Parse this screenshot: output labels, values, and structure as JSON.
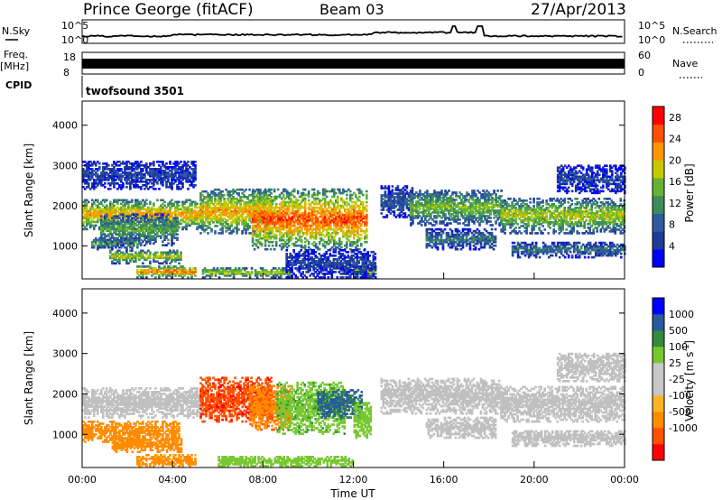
{
  "header": {
    "station": "Prince George (fitACF)",
    "beam": "Beam 03",
    "date": "27/Apr/2013"
  },
  "aux_panels": {
    "nsky_label": "N.Sky",
    "nsky_ticks": [
      "10^5",
      "10^0"
    ],
    "nsearch_label": "N.Search",
    "freq_label": "Freq.",
    "freq_unit": "[MHz]",
    "freq_ticks": [
      "18",
      "8"
    ],
    "nave_ticks": [
      "60",
      "0"
    ],
    "nave_label": "Nave",
    "cpid_label": "CPID",
    "cpid_value": "twofsound 3501"
  },
  "colors": {
    "power_scale": [
      "#0000ff",
      "#1e3c96",
      "#2e5aa0",
      "#3c8c5a",
      "#64b432",
      "#c8c800",
      "#ff9600",
      "#ff5000",
      "#ff0000"
    ],
    "velocity_scale": [
      "#ff0000",
      "#ff5000",
      "#ff8c00",
      "#ffb428",
      "#c8c8c8",
      "#c8c8c8",
      "#78c832",
      "#328c3c",
      "#285aa0",
      "#0000ff"
    ],
    "ground_scatter": "#c0c0c0"
  },
  "chart_data": [
    {
      "type": "heatmap",
      "title": "Power",
      "xlabel": "",
      "ylabel": "Slant Range [km]",
      "x_ticks": [
        "00:00",
        "04:00",
        "08:00",
        "12:00",
        "16:00",
        "20:00",
        "00:00"
      ],
      "xlim_hours": [
        0,
        24
      ],
      "y_ticks": [
        1000,
        2000,
        3000,
        4000
      ],
      "ylim": [
        180,
        4600
      ],
      "colorbar_label": "Power [dB]",
      "colorbar_ticks": [
        4,
        8,
        12,
        16,
        20,
        24,
        28
      ],
      "colorbar_range": [
        0,
        30
      ],
      "bands": [
        {
          "t": [
            0.0,
            5.3
          ],
          "r": [
            1400,
            2150
          ],
          "peak": 22
        },
        {
          "t": [
            0.4,
            2.5
          ],
          "r": [
            900,
            1200
          ],
          "peak": 14
        },
        {
          "t": [
            0.8,
            4.2
          ],
          "r": [
            1000,
            1800
          ],
          "peak": 14
        },
        {
          "t": [
            1.2,
            4.4
          ],
          "r": [
            550,
            900
          ],
          "peak": 18
        },
        {
          "t": [
            2.4,
            5.0
          ],
          "r": [
            200,
            500
          ],
          "peak": 24
        },
        {
          "t": [
            5.2,
            8.4
          ],
          "r": [
            1300,
            2400
          ],
          "peak": 22
        },
        {
          "t": [
            7.5,
            12.6
          ],
          "r": [
            900,
            2400
          ],
          "peak": 26
        },
        {
          "t": [
            5.3,
            9.2
          ],
          "r": [
            200,
            450
          ],
          "peak": 18
        },
        {
          "t": [
            11.5,
            13.0
          ],
          "r": [
            200,
            500
          ],
          "peak": 18
        },
        {
          "t": [
            13.2,
            14.6
          ],
          "r": [
            1700,
            2500
          ],
          "peak": 8
        },
        {
          "t": [
            14.5,
            18.5
          ],
          "r": [
            1500,
            2400
          ],
          "peak": 16
        },
        {
          "t": [
            15.2,
            18.3
          ],
          "r": [
            900,
            1400
          ],
          "peak": 10
        },
        {
          "t": [
            18.5,
            24.0
          ],
          "r": [
            1300,
            2200
          ],
          "peak": 18
        },
        {
          "t": [
            19.0,
            24.0
          ],
          "r": [
            700,
            1100
          ],
          "peak": 10
        },
        {
          "t": [
            21.0,
            24.0
          ],
          "r": [
            2300,
            3000
          ],
          "peak": 6
        },
        {
          "t": [
            0.0,
            5.0
          ],
          "r": [
            2400,
            3100
          ],
          "peak": 6
        },
        {
          "t": [
            9.0,
            13.0
          ],
          "r": [
            200,
            900
          ],
          "peak": 6
        }
      ]
    },
    {
      "type": "heatmap",
      "title": "Velocity",
      "xlabel": "Time UT",
      "ylabel": "Slant Range [km]",
      "x_ticks": [
        "00:00",
        "04:00",
        "08:00",
        "12:00",
        "16:00",
        "20:00",
        "00:00"
      ],
      "xlim_hours": [
        0,
        24
      ],
      "y_ticks": [
        1000,
        2000,
        3000,
        4000
      ],
      "ylim": [
        180,
        4600
      ],
      "colorbar_label": "Velocity [m s^-1]",
      "colorbar_ticks": [
        1000,
        500,
        100,
        25,
        -25,
        -100,
        -500,
        -1000
      ],
      "bands": [
        {
          "t": [
            0.0,
            5.3
          ],
          "r": [
            1400,
            2150
          ],
          "v": 0
        },
        {
          "t": [
            0.0,
            4.3
          ],
          "r": [
            800,
            1300
          ],
          "v": -300
        },
        {
          "t": [
            1.3,
            4.4
          ],
          "r": [
            550,
            900
          ],
          "v": -200
        },
        {
          "t": [
            2.4,
            5.0
          ],
          "r": [
            200,
            500
          ],
          "v": -150
        },
        {
          "t": [
            5.2,
            8.4
          ],
          "r": [
            1300,
            2400
          ],
          "v": -800
        },
        {
          "t": [
            7.4,
            9.2
          ],
          "r": [
            1100,
            2200
          ],
          "v": -400
        },
        {
          "t": [
            8.6,
            11.6
          ],
          "r": [
            1000,
            2300
          ],
          "v": 80
        },
        {
          "t": [
            10.4,
            12.4
          ],
          "r": [
            1400,
            2100
          ],
          "v": 600
        },
        {
          "t": [
            12.0,
            12.8
          ],
          "r": [
            900,
            1800
          ],
          "v": 60
        },
        {
          "t": [
            13.2,
            18.5
          ],
          "r": [
            1500,
            2400
          ],
          "v": 0
        },
        {
          "t": [
            15.2,
            18.3
          ],
          "r": [
            900,
            1400
          ],
          "v": 0
        },
        {
          "t": [
            18.5,
            24.0
          ],
          "r": [
            1300,
            2200
          ],
          "v": 0
        },
        {
          "t": [
            19.0,
            24.0
          ],
          "r": [
            700,
            1100
          ],
          "v": 0
        },
        {
          "t": [
            21.0,
            24.0
          ],
          "r": [
            2300,
            3000
          ],
          "v": 0
        },
        {
          "t": [
            6.0,
            12.0
          ],
          "r": [
            200,
            450
          ],
          "v": 60
        }
      ]
    }
  ]
}
